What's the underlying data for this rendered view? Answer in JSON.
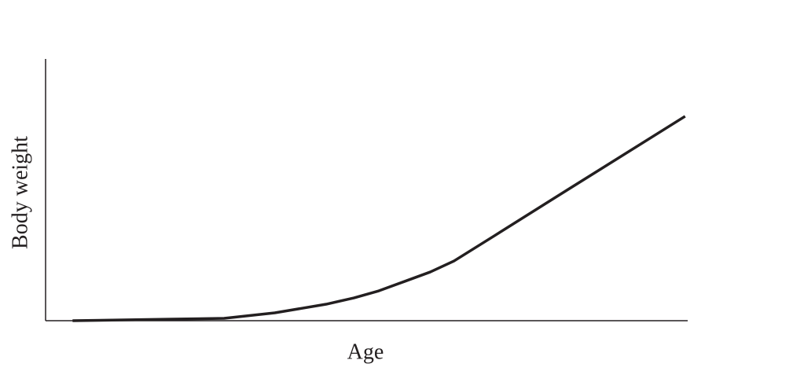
{
  "chart_data": {
    "type": "line",
    "x_label": "Age",
    "y_label": "Body weight",
    "x": [
      4.2,
      19.8,
      27.8,
      35.7,
      43.7,
      48.0,
      51.9,
      55.9,
      59.9,
      63.6,
      70.0,
      81.6,
      99.6
    ],
    "series": [
      {
        "color": "#231f20",
        "values": [
          0,
          0.6,
          0.9,
          3.0,
          6.3,
          8.7,
          11.4,
          15.0,
          18.6,
          22.8,
          32.6,
          50.5,
          78.1
        ]
      }
    ],
    "xlim": [
      0,
      100
    ],
    "ylim": [
      0,
      100
    ]
  }
}
